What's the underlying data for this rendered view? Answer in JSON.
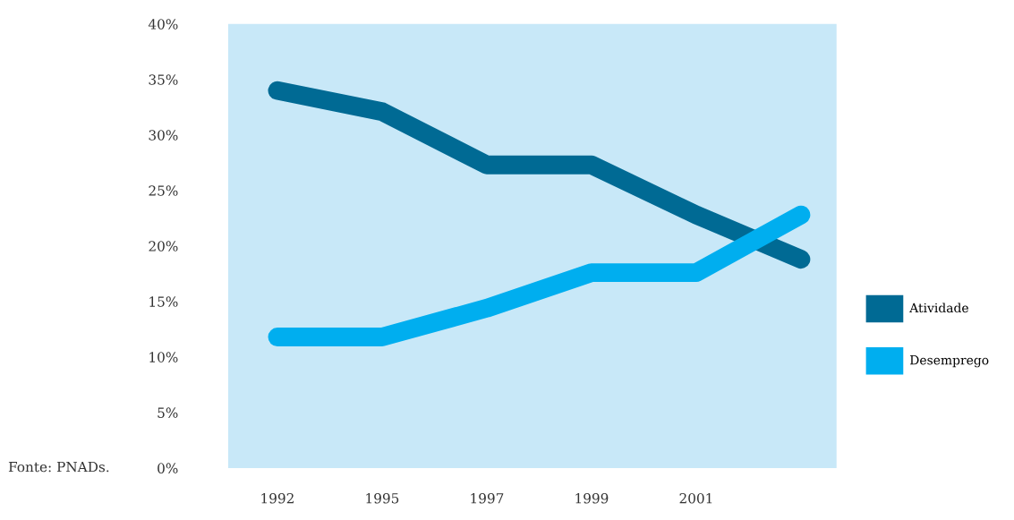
{
  "chart_data": {
    "type": "line",
    "categories": [
      "1992",
      "1995",
      "1997",
      "1999",
      "2001",
      null
    ],
    "series": [
      {
        "name": "Atividade",
        "color": "#006a94",
        "values": [
          34.0,
          32.1,
          27.3,
          27.3,
          22.8,
          18.8
        ]
      },
      {
        "name": "Desemprego",
        "color": "#00aeef",
        "values": [
          11.8,
          11.8,
          14.4,
          17.6,
          17.6,
          22.8
        ]
      }
    ],
    "ylim": [
      0,
      40
    ],
    "yticks": [
      {
        "value": 0,
        "label": "0%"
      },
      {
        "value": 5,
        "label": "5%"
      },
      {
        "value": 10,
        "label": "10%"
      },
      {
        "value": 15,
        "label": "15%"
      },
      {
        "value": 20,
        "label": "20%"
      },
      {
        "value": 25,
        "label": "25%"
      },
      {
        "value": 30,
        "label": "30%"
      },
      {
        "value": 35,
        "label": "35%"
      },
      {
        "value": 40,
        "label": "40%"
      }
    ],
    "grid": false,
    "legend": "right",
    "annotations": [
      "Fonte: PNADs."
    ]
  }
}
